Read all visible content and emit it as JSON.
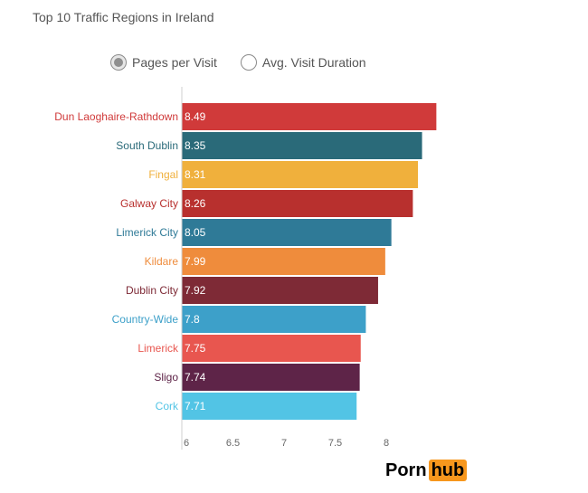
{
  "chart_data": {
    "type": "bar",
    "orientation": "horizontal",
    "title": "Top 10 Traffic Regions in Ireland",
    "categories": [
      "Dun Laoghaire-Rathdown",
      "South Dublin",
      "Fingal",
      "Galway City",
      "Limerick City",
      "Kildare",
      "Dublin City",
      "Country-Wide",
      "Limerick",
      "Sligo",
      "Cork"
    ],
    "values": [
      8.49,
      8.35,
      8.31,
      8.26,
      8.05,
      7.99,
      7.92,
      7.8,
      7.75,
      7.74,
      7.71
    ],
    "value_labels": [
      "8.49",
      "8.35",
      "8.31",
      "8.26",
      "8.05",
      "7.99",
      "7.92",
      "7.8",
      "7.75",
      "7.74",
      "7.71"
    ],
    "colors": [
      "#d03a3a",
      "#2a6a79",
      "#f0b03c",
      "#b8302e",
      "#2f7a97",
      "#ef8c3c",
      "#7e2a36",
      "#3da0c9",
      "#e8564f",
      "#5e2448",
      "#52c4e5"
    ],
    "xlim": [
      6,
      8.5
    ],
    "xticks": [
      "6",
      "6.5",
      "7",
      "7.5",
      "8"
    ],
    "xlabel": "",
    "ylabel": "",
    "grid": false
  },
  "controls": {
    "options": [
      {
        "label": "Pages per Visit",
        "selected": true
      },
      {
        "label": "Avg. Visit Duration",
        "selected": false
      }
    ]
  },
  "logo": {
    "part1": "Porn",
    "part2": "hub"
  }
}
